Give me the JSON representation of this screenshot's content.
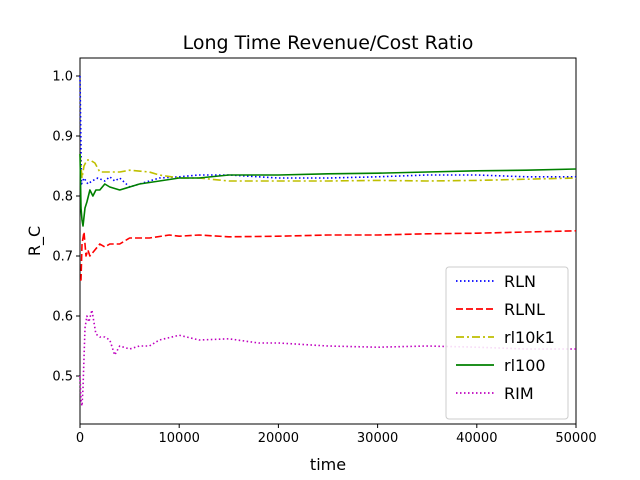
{
  "chart_data": {
    "type": "line",
    "title": "Long Time Revenue/Cost Ratio",
    "xlabel": "time",
    "ylabel": "R_C",
    "xlim": [
      0,
      50000
    ],
    "ylim": [
      0.42,
      1.03
    ],
    "xticks": [
      0,
      10000,
      20000,
      30000,
      40000,
      50000
    ],
    "yticks": [
      0.5,
      0.6,
      0.7,
      0.8,
      0.9,
      1.0
    ],
    "x_tick_labels": [
      "0",
      "10000",
      "20000",
      "30000",
      "40000",
      "50000"
    ],
    "y_tick_labels": [
      "0.5",
      "0.6",
      "0.7",
      "0.8",
      "0.9",
      "1.0"
    ],
    "grid": false,
    "legend_position": "lower-right",
    "series": [
      {
        "name": "RLN",
        "color": "#0000ff",
        "dash": "dotted",
        "points": [
          [
            0,
            1.0
          ],
          [
            150,
            0.82
          ],
          [
            400,
            0.83
          ],
          [
            800,
            0.82
          ],
          [
            1200,
            0.825
          ],
          [
            1800,
            0.83
          ],
          [
            2500,
            0.825
          ],
          [
            3000,
            0.832
          ],
          [
            3500,
            0.825
          ],
          [
            4000,
            0.83
          ],
          [
            5000,
            0.815
          ],
          [
            6000,
            0.82
          ],
          [
            8000,
            0.83
          ],
          [
            10000,
            0.832
          ],
          [
            12000,
            0.835
          ],
          [
            15000,
            0.835
          ],
          [
            20000,
            0.83
          ],
          [
            25000,
            0.83
          ],
          [
            30000,
            0.832
          ],
          [
            35000,
            0.835
          ],
          [
            40000,
            0.835
          ],
          [
            45000,
            0.832
          ],
          [
            50000,
            0.832
          ]
        ]
      },
      {
        "name": "RLNL",
        "color": "#ff0000",
        "dash": "dashed",
        "points": [
          [
            0,
            0.66
          ],
          [
            100,
            0.66
          ],
          [
            200,
            0.72
          ],
          [
            400,
            0.74
          ],
          [
            600,
            0.7
          ],
          [
            800,
            0.71
          ],
          [
            1000,
            0.7
          ],
          [
            1500,
            0.71
          ],
          [
            2000,
            0.72
          ],
          [
            2500,
            0.715
          ],
          [
            3000,
            0.72
          ],
          [
            4000,
            0.72
          ],
          [
            5000,
            0.73
          ],
          [
            7000,
            0.73
          ],
          [
            9000,
            0.735
          ],
          [
            10000,
            0.733
          ],
          [
            12000,
            0.735
          ],
          [
            15000,
            0.732
          ],
          [
            20000,
            0.733
          ],
          [
            25000,
            0.735
          ],
          [
            30000,
            0.735
          ],
          [
            35000,
            0.737
          ],
          [
            40000,
            0.738
          ],
          [
            45000,
            0.74
          ],
          [
            50000,
            0.742
          ]
        ]
      },
      {
        "name": "rl10k1",
        "color": "#bfbf00",
        "dash": "dashdot",
        "points": [
          [
            0,
            0.87
          ],
          [
            200,
            0.83
          ],
          [
            400,
            0.85
          ],
          [
            700,
            0.86
          ],
          [
            1000,
            0.86
          ],
          [
            1500,
            0.855
          ],
          [
            2000,
            0.84
          ],
          [
            3000,
            0.84
          ],
          [
            4000,
            0.84
          ],
          [
            5000,
            0.843
          ],
          [
            7000,
            0.84
          ],
          [
            8000,
            0.835
          ],
          [
            10000,
            0.83
          ],
          [
            12000,
            0.83
          ],
          [
            15000,
            0.825
          ],
          [
            20000,
            0.825
          ],
          [
            25000,
            0.825
          ],
          [
            30000,
            0.826
          ],
          [
            35000,
            0.825
          ],
          [
            40000,
            0.826
          ],
          [
            45000,
            0.828
          ],
          [
            50000,
            0.83
          ]
        ]
      },
      {
        "name": "rl100",
        "color": "#008000",
        "dash": "solid",
        "points": [
          [
            0,
            0.87
          ],
          [
            100,
            0.78
          ],
          [
            200,
            0.76
          ],
          [
            300,
            0.75
          ],
          [
            500,
            0.78
          ],
          [
            700,
            0.79
          ],
          [
            1000,
            0.81
          ],
          [
            1300,
            0.8
          ],
          [
            1600,
            0.81
          ],
          [
            2000,
            0.81
          ],
          [
            2500,
            0.82
          ],
          [
            3000,
            0.815
          ],
          [
            4000,
            0.81
          ],
          [
            5000,
            0.815
          ],
          [
            6000,
            0.82
          ],
          [
            8000,
            0.825
          ],
          [
            10000,
            0.83
          ],
          [
            12000,
            0.83
          ],
          [
            15000,
            0.835
          ],
          [
            20000,
            0.835
          ],
          [
            25000,
            0.837
          ],
          [
            30000,
            0.838
          ],
          [
            35000,
            0.84
          ],
          [
            40000,
            0.842
          ],
          [
            45000,
            0.843
          ],
          [
            50000,
            0.845
          ]
        ]
      },
      {
        "name": "RIM",
        "color": "#bf00bf",
        "dash": "dotted",
        "points": [
          [
            0,
            0.5
          ],
          [
            100,
            0.46
          ],
          [
            200,
            0.45
          ],
          [
            300,
            0.48
          ],
          [
            500,
            0.58
          ],
          [
            700,
            0.6
          ],
          [
            900,
            0.59
          ],
          [
            1200,
            0.61
          ],
          [
            1600,
            0.57
          ],
          [
            2000,
            0.565
          ],
          [
            2500,
            0.565
          ],
          [
            3000,
            0.56
          ],
          [
            3500,
            0.535
          ],
          [
            4000,
            0.55
          ],
          [
            5000,
            0.545
          ],
          [
            6000,
            0.55
          ],
          [
            7000,
            0.55
          ],
          [
            8000,
            0.56
          ],
          [
            10000,
            0.568
          ],
          [
            12000,
            0.56
          ],
          [
            15000,
            0.562
          ],
          [
            18000,
            0.555
          ],
          [
            20000,
            0.555
          ],
          [
            25000,
            0.55
          ],
          [
            30000,
            0.548
          ],
          [
            35000,
            0.55
          ],
          [
            40000,
            0.548
          ],
          [
            45000,
            0.545
          ],
          [
            50000,
            0.545
          ]
        ]
      }
    ]
  }
}
